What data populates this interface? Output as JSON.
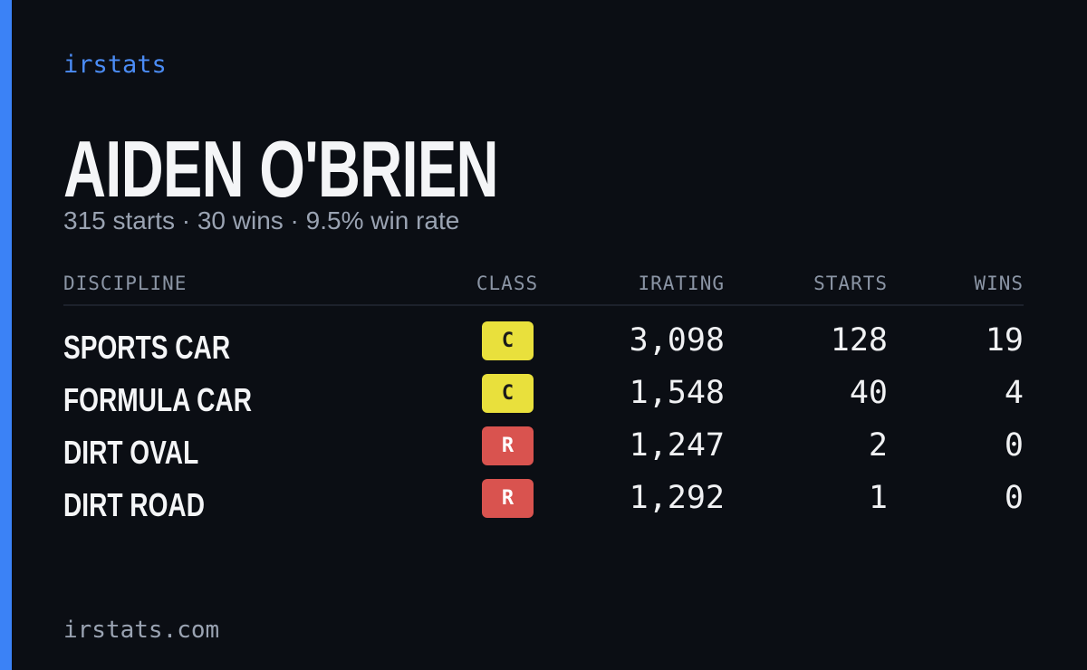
{
  "brand": "irstats",
  "name": "AIDEN O'BRIEN",
  "summary": "315 starts · 30 wins · 9.5% win rate",
  "table": {
    "headers": [
      "DISCIPLINE",
      "CLASS",
      "IRATING",
      "STARTS",
      "WINS"
    ],
    "rows": [
      {
        "discipline": "SPORTS CAR",
        "class": "C",
        "class_color": "#e9e03c",
        "class_text_color": "#1a1a1a",
        "irating": "3,098",
        "starts": "128",
        "wins": "19"
      },
      {
        "discipline": "FORMULA CAR",
        "class": "C",
        "class_color": "#e9e03c",
        "class_text_color": "#1a1a1a",
        "irating": "1,548",
        "starts": "40",
        "wins": "4"
      },
      {
        "discipline": "DIRT OVAL",
        "class": "R",
        "class_color": "#d9534f",
        "class_text_color": "#ffffff",
        "irating": "1,247",
        "starts": "2",
        "wins": "0"
      },
      {
        "discipline": "DIRT ROAD",
        "class": "R",
        "class_color": "#d9534f",
        "class_text_color": "#ffffff",
        "irating": "1,292",
        "starts": "1",
        "wins": "0"
      }
    ]
  },
  "footer": "irstats.com"
}
